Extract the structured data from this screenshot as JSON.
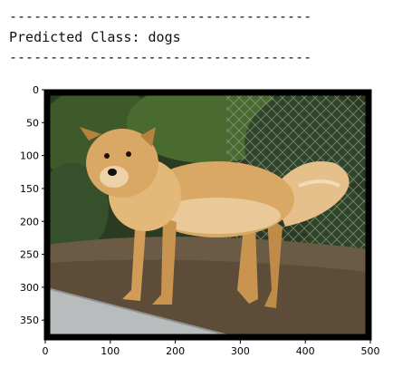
{
  "console": {
    "separator": "-------------------------------------",
    "prediction_label": "Predicted Class:",
    "prediction_value": "dogs"
  },
  "chart_data": {
    "type": "image",
    "title": "",
    "xlabel": "",
    "ylabel": "",
    "xlim": [
      0,
      500
    ],
    "ylim": [
      380,
      0
    ],
    "x_ticks": [
      "0",
      "100",
      "200",
      "300",
      "400",
      "500"
    ],
    "y_ticks": [
      "0",
      "50",
      "100",
      "150",
      "200",
      "250",
      "300",
      "350"
    ],
    "image_content": "photo-of-golden-dog",
    "grid": false
  },
  "colors": {
    "background": "#ffffff",
    "frame": "#000000",
    "foliage_dark": "#22331a",
    "foliage_mid": "#3e5a2a",
    "ground": "#6b5b45",
    "pavement": "#b9bcbd",
    "dog_fur": "#d9a864",
    "dog_light": "#f1dcb8"
  }
}
